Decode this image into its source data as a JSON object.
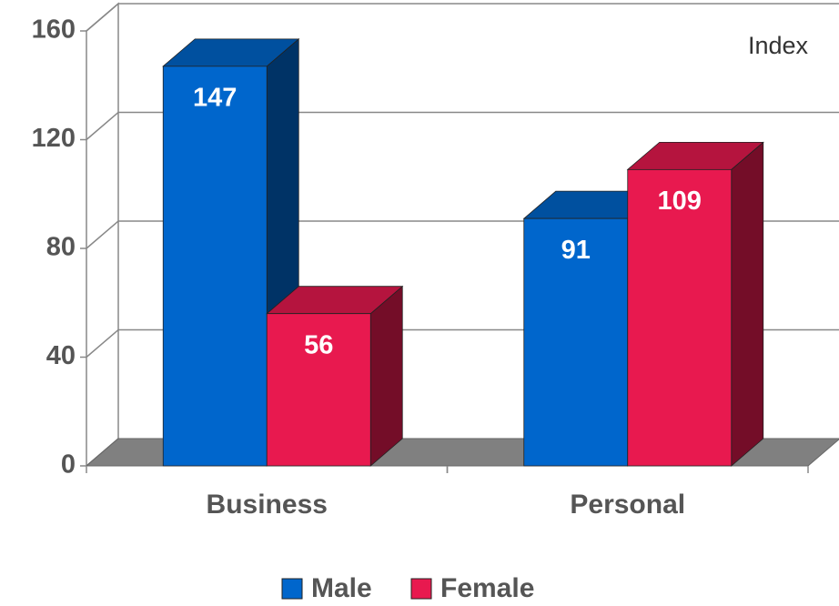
{
  "chart_data": {
    "type": "bar3d",
    "annotation": "Index",
    "categories": [
      "Business",
      "Personal"
    ],
    "series": [
      {
        "name": "Male",
        "color": "#0066cc",
        "values": [
          147,
          91
        ]
      },
      {
        "name": "Female",
        "color": "#e8194f",
        "values": [
          56,
          109
        ]
      }
    ],
    "ylim": [
      0,
      160
    ],
    "yticks": [
      0,
      40,
      80,
      120,
      160
    ],
    "grid": true,
    "legend": "bottom"
  }
}
